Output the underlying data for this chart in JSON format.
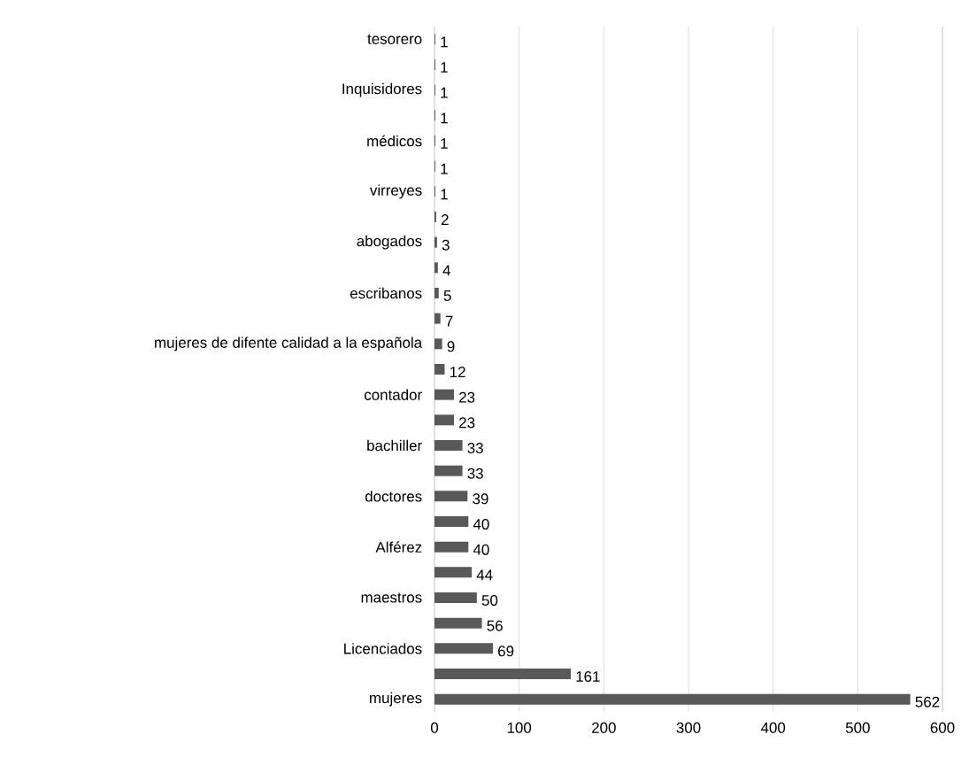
{
  "chart_data": {
    "type": "bar",
    "orientation": "horizontal",
    "categories": [
      "tesorero",
      null,
      "Inquisidores",
      null,
      "médicos",
      null,
      "virreyes",
      null,
      "abogados",
      null,
      "escribanos",
      null,
      "mujeres de difente calidad a la española",
      null,
      "contador",
      null,
      "bachiller",
      null,
      "doctores",
      null,
      "Alférez",
      null,
      "maestros",
      null,
      "Licenciados",
      null,
      "mujeres"
    ],
    "values": [
      1,
      1,
      1,
      1,
      1,
      1,
      1,
      2,
      3,
      4,
      5,
      7,
      9,
      12,
      23,
      23,
      33,
      33,
      39,
      40,
      40,
      44,
      50,
      56,
      69,
      161,
      562
    ],
    "color": "#595959",
    "xlim": [
      0,
      600
    ],
    "xticks": [
      0,
      100,
      200,
      300,
      400,
      500,
      600
    ],
    "grid": "x",
    "data_labels": true
  }
}
